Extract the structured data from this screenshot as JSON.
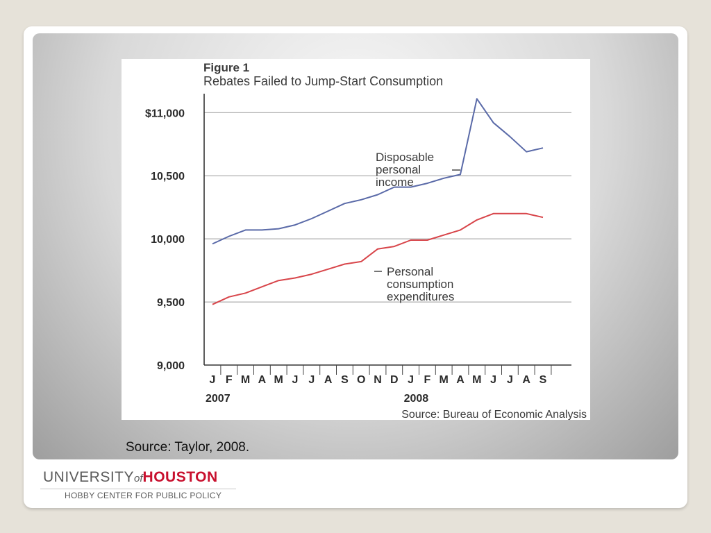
{
  "caption": "Source: Taylor, 2008.",
  "logo": {
    "university": "UNIVERSITY",
    "of": "of",
    "houston": "HOUSTON",
    "subtitle": "HOBBY CENTER FOR PUBLIC POLICY"
  },
  "colors": {
    "income_line": "#5a6aa8",
    "consumption_line": "#d8454a",
    "houston_red": "#c8102e"
  },
  "chart_data": {
    "type": "line",
    "figure_label": "Figure 1",
    "title": "Rebates Failed to Jump-Start Consumption",
    "source": "Source: Bureau of Economic Analysis",
    "categories": [
      "J",
      "F",
      "M",
      "A",
      "M",
      "J",
      "J",
      "A",
      "S",
      "O",
      "N",
      "D",
      "J",
      "F",
      "M",
      "A",
      "M",
      "J",
      "J",
      "A",
      "S"
    ],
    "year_labels": [
      {
        "label": "2007",
        "index": 0
      },
      {
        "label": "2008",
        "index": 12
      }
    ],
    "y_ticks": [
      "9,000",
      "9,500",
      "10,000",
      "10,500",
      "$11,000"
    ],
    "y_tick_values": [
      9000,
      9500,
      10000,
      10500,
      11000
    ],
    "ylim": [
      9000,
      11150
    ],
    "grid": true,
    "series": [
      {
        "name": "Disposable personal income",
        "label_lines": [
          "Disposable",
          "personal",
          "income"
        ],
        "values": [
          9960,
          10020,
          10070,
          10070,
          10080,
          10110,
          10160,
          10220,
          10280,
          10310,
          10350,
          10410,
          10410,
          10440,
          10480,
          10510,
          11110,
          10920,
          10810,
          10690,
          10720
        ]
      },
      {
        "name": "Personal consumption expenditures",
        "label_lines": [
          "Personal",
          "consumption",
          "expenditures"
        ],
        "values": [
          9480,
          9540,
          9570,
          9620,
          9670,
          9690,
          9720,
          9760,
          9800,
          9820,
          9920,
          9940,
          9990,
          9990,
          10030,
          10070,
          10150,
          10200,
          10200,
          10200,
          10170
        ]
      }
    ]
  }
}
